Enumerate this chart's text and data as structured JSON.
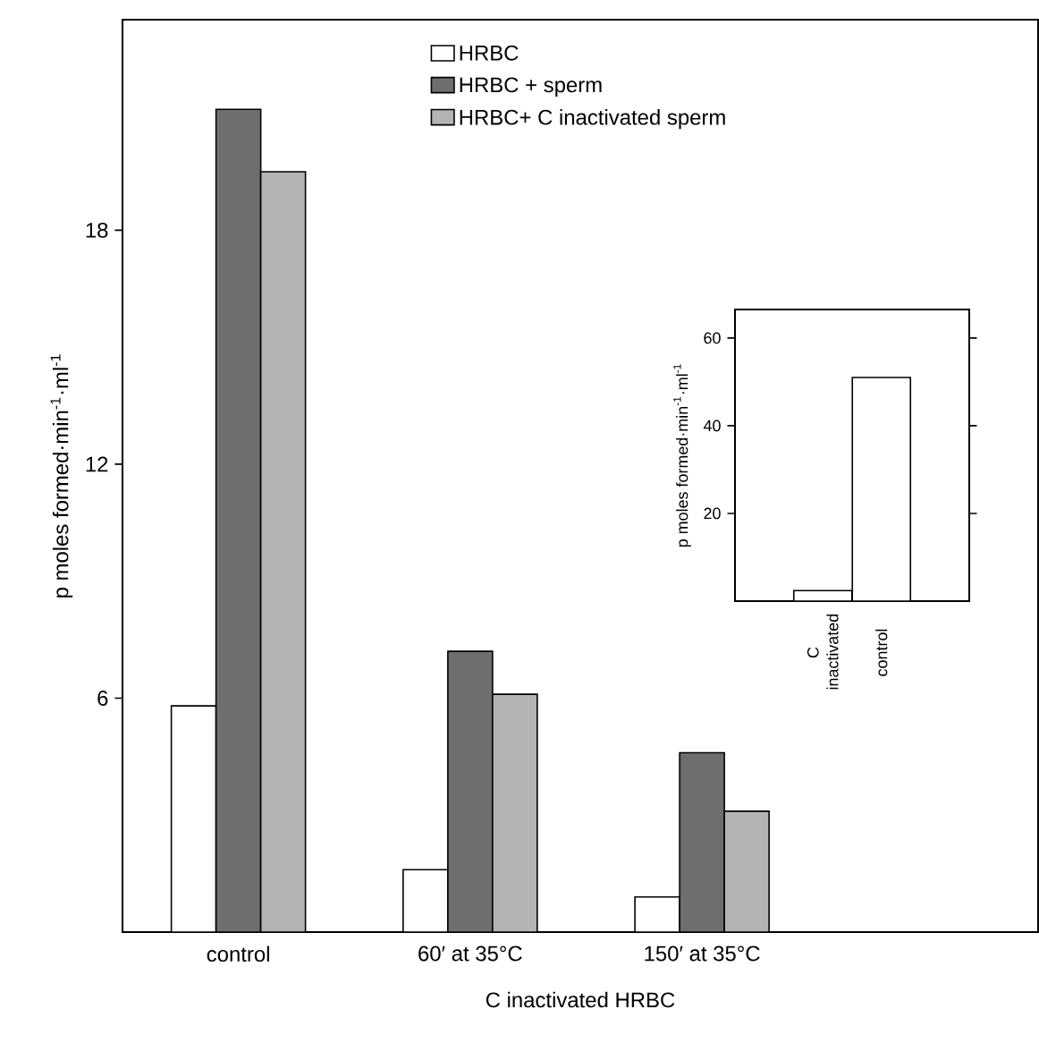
{
  "chart_data": [
    {
      "type": "bar",
      "xlabel": "C inactivated HRBC",
      "ylabel": "p moles formed·min$^{-1}$·ml$^{-1}$",
      "categories": [
        "control",
        "60′ at 35°C",
        "150′ at 35°C"
      ],
      "series": [
        {
          "name": "HRBC",
          "color": "#ffffff",
          "values": [
            5.8,
            1.6,
            0.9
          ]
        },
        {
          "name": "HRBC + sperm",
          "color": "#6e6e6e",
          "values": [
            21.1,
            7.2,
            4.6
          ]
        },
        {
          "name": "HRBC+ C inactivated sperm",
          "color": "#b4b4b4",
          "values": [
            19.5,
            6.1,
            3.1
          ]
        }
      ],
      "ylim": [
        0,
        23.4
      ],
      "yticks": [
        6,
        12,
        18
      ],
      "legend": "top"
    },
    {
      "type": "bar",
      "ylabel": "p moles formed·min$^{-1}$·ml$^{-1}$",
      "categories": [
        "C inactivated",
        "control"
      ],
      "values": [
        2.4,
        51
      ],
      "color": "#ffffff",
      "ylim": [
        0,
        66.5
      ],
      "yticks": [
        20,
        40,
        60
      ]
    }
  ]
}
